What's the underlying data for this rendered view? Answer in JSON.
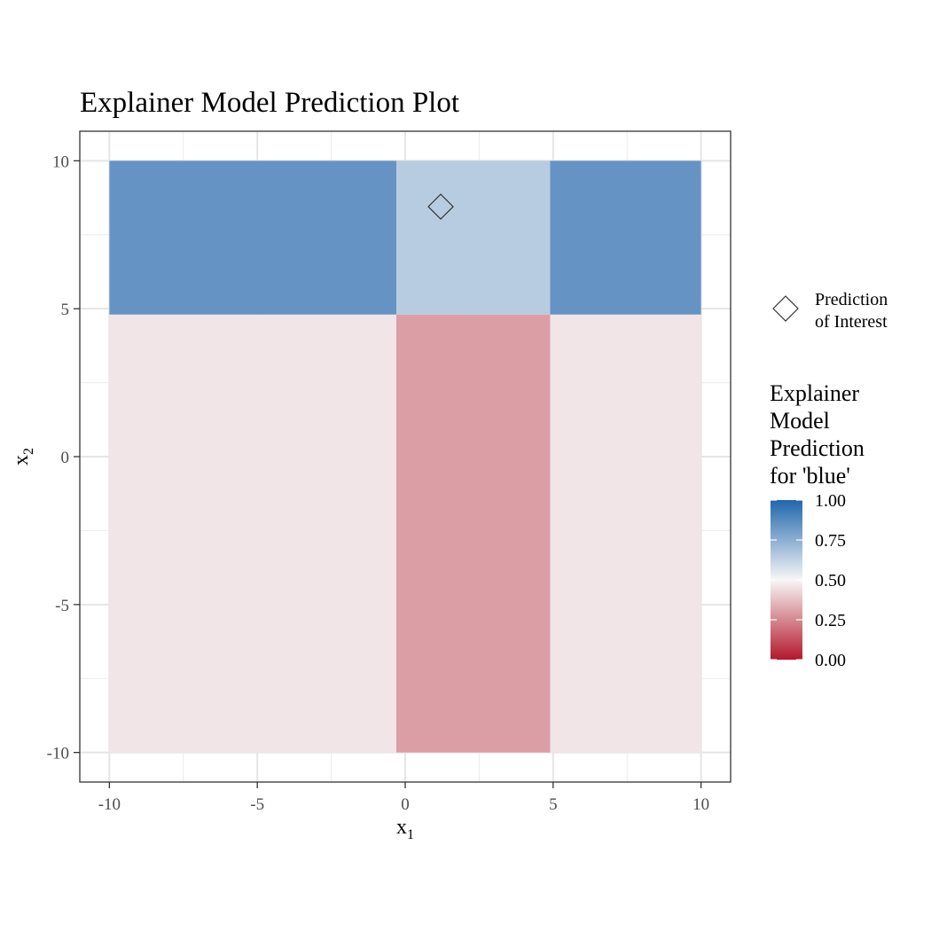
{
  "chart_data": {
    "type": "heatmap",
    "title": "Explainer Model Prediction Plot",
    "xlabel": {
      "main": "x",
      "sub": "1"
    },
    "ylabel": {
      "main": "x",
      "sub": "2"
    },
    "xlim": [
      -11,
      11
    ],
    "ylim": [
      -11,
      11
    ],
    "x_ticks": [
      -10,
      -5,
      0,
      5,
      10
    ],
    "y_ticks": [
      -10,
      -5,
      0,
      5,
      10
    ],
    "grid": true,
    "cells": [
      {
        "x0": -10,
        "x1": -0.3,
        "y0": 4.8,
        "y1": 10,
        "value": 0.84
      },
      {
        "x0": -0.3,
        "x1": 4.9,
        "y0": 4.8,
        "y1": 10,
        "value": 0.65
      },
      {
        "x0": 4.9,
        "x1": 10,
        "y0": 4.8,
        "y1": 10,
        "value": 0.84
      },
      {
        "x0": -10,
        "x1": -0.3,
        "y0": -10,
        "y1": 4.8,
        "value": 0.46
      },
      {
        "x0": -0.3,
        "x1": 4.9,
        "y0": -10,
        "y1": 4.8,
        "value": 0.3
      },
      {
        "x0": 4.9,
        "x1": 10,
        "y0": -10,
        "y1": 4.8,
        "value": 0.46
      }
    ],
    "points": [
      {
        "x": 1.2,
        "y": 8.45,
        "series": "Prediction of Interest"
      }
    ],
    "shape_legend": {
      "label_lines": [
        "Prediction",
        "of Interest"
      ]
    },
    "color_legend": {
      "title_lines": [
        "Explainer",
        "Model",
        "Prediction",
        "for 'blue'"
      ],
      "ticks": [
        1.0,
        0.75,
        0.5,
        0.25,
        0.0
      ],
      "tick_labels": [
        "1.00",
        "0.75",
        "0.50",
        "0.25",
        "0.00"
      ],
      "range": [
        0,
        1
      ],
      "low_color": "#b2182b",
      "mid_color": "#f7f7f7",
      "high_color": "#2166ac"
    }
  }
}
